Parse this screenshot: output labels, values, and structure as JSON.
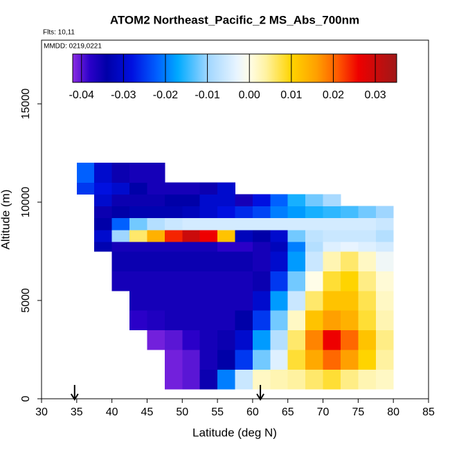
{
  "chart_data": {
    "type": "heatmap",
    "title": "ATOM2 Northeast_Pacific_2 MS_Abs_700nm",
    "subtitle": "Flts: 10,11",
    "annotation": "MMDD: 0219,0221",
    "x_label": "Latitude (deg N)",
    "y_label": "Altitude (m)",
    "xlim": [
      30,
      85
    ],
    "ylim": [
      0,
      18239
    ],
    "xticks": [
      30,
      35,
      40,
      45,
      50,
      55,
      60,
      65,
      70,
      75,
      80,
      85
    ],
    "yticks": [
      0,
      5000,
      10000,
      15000
    ],
    "clim": [
      -0.0421,
      0.0351
    ],
    "cticks": [
      -0.04,
      -0.03,
      -0.02,
      -0.01,
      {
        "value": 0,
        "label": "0.00"
      },
      0.01,
      0.02,
      0.03
    ],
    "colorscale": [
      [
        -0.042,
        "#8a2be2"
      ],
      [
        -0.038,
        "#2a00c8"
      ],
      [
        -0.034,
        "#0000a8"
      ],
      [
        -0.028,
        "#0010e0"
      ],
      [
        -0.022,
        "#0060ff"
      ],
      [
        -0.017,
        "#00aaff"
      ],
      [
        -0.01,
        "#9fd6ff"
      ],
      [
        -0.003,
        "#e8f4ff"
      ],
      [
        0,
        "#fffde8"
      ],
      [
        0.004,
        "#fff2a0"
      ],
      [
        0.01,
        "#ffd400"
      ],
      [
        0.016,
        "#ffa000"
      ],
      [
        0.021,
        "#ff5a00"
      ],
      [
        0.026,
        "#ee0000"
      ],
      [
        0.035,
        "#a01818"
      ]
    ],
    "arrows": [
      34.7,
      61.1
    ],
    "xbins": [
      35,
      37.5,
      40,
      42.5,
      45,
      47.5,
      50,
      52.5,
      55,
      57.5,
      60,
      62.5,
      65,
      67.5,
      70,
      72.5,
      75,
      77.5,
      80
    ],
    "ybins": [
      500,
      1500,
      2500,
      3500,
      4500,
      5500,
      6500,
      7500,
      8000,
      8600,
      9200,
      9800,
      10400,
      11000,
      12000
    ],
    "values": [
      [
        null,
        null,
        null,
        null,
        null,
        -0.041,
        -0.04,
        -0.035,
        -0.02,
        -0.006,
        0.002,
        0.003,
        0.004,
        0.006,
        0.008,
        0.005,
        0.003,
        0.002
      ],
      [
        null,
        null,
        null,
        null,
        null,
        -0.041,
        -0.04,
        -0.036,
        -0.034,
        -0.025,
        -0.012,
        -0.004,
        0.008,
        0.015,
        0.02,
        0.016,
        0.01,
        0.004
      ],
      [
        null,
        null,
        null,
        null,
        -0.041,
        -0.04,
        -0.038,
        -0.036,
        -0.035,
        -0.03,
        -0.018,
        -0.008,
        0.006,
        0.018,
        0.026,
        0.02,
        0.012,
        0.005
      ],
      [
        null,
        null,
        null,
        -0.038,
        -0.037,
        -0.036,
        -0.036,
        -0.036,
        -0.036,
        -0.034,
        -0.025,
        -0.012,
        0.002,
        0.012,
        0.016,
        0.014,
        0.008,
        0.003
      ],
      [
        null,
        null,
        null,
        -0.036,
        -0.036,
        -0.036,
        -0.036,
        -0.036,
        -0.036,
        -0.036,
        -0.03,
        -0.018,
        -0.006,
        0.006,
        0.012,
        0.012,
        0.007,
        0.002
      ],
      [
        null,
        null,
        -0.036,
        -0.036,
        -0.036,
        -0.036,
        -0.036,
        -0.036,
        -0.036,
        -0.036,
        -0.035,
        -0.025,
        -0.012,
        0,
        0.008,
        0.01,
        0.005,
        0.001
      ],
      [
        null,
        null,
        -0.035,
        -0.035,
        -0.035,
        -0.035,
        -0.035,
        -0.035,
        -0.035,
        -0.035,
        -0.036,
        -0.03,
        -0.018,
        -0.006,
        0.003,
        0.006,
        0.002,
        -0.002
      ],
      [
        null,
        -0.033,
        -0.036,
        -0.036,
        -0.036,
        -0.036,
        -0.036,
        -0.036,
        -0.038,
        -0.038,
        -0.036,
        -0.032,
        -0.02,
        -0.008,
        -0.004,
        -0.003,
        -0.004,
        -0.005
      ],
      [
        null,
        -0.03,
        -0.01,
        0.006,
        0.014,
        0.024,
        0.03,
        0.026,
        0.012,
        -0.032,
        -0.034,
        -0.03,
        -0.012,
        -0.007,
        -0.006,
        -0.006,
        -0.006,
        -0.008
      ],
      [
        null,
        -0.034,
        -0.022,
        -0.012,
        -0.008,
        -0.006,
        -0.005,
        -0.005,
        -0.005,
        -0.005,
        -0.005,
        -0.005,
        -0.005,
        -0.005,
        -0.005,
        -0.005,
        -0.005,
        -0.006
      ],
      [
        null,
        -0.035,
        -0.034,
        -0.033,
        -0.033,
        -0.033,
        -0.032,
        -0.03,
        -0.028,
        -0.026,
        -0.024,
        -0.02,
        -0.018,
        -0.016,
        -0.015,
        -0.014,
        -0.012,
        -0.01
      ],
      [
        null,
        -0.03,
        -0.035,
        -0.035,
        -0.035,
        -0.034,
        -0.034,
        -0.03,
        -0.03,
        -0.036,
        -0.028,
        -0.022,
        -0.016,
        -0.012,
        -0.009,
        null,
        null,
        null
      ],
      [
        -0.025,
        -0.028,
        -0.03,
        -0.034,
        -0.036,
        -0.036,
        -0.036,
        -0.035,
        -0.03,
        null,
        null,
        null,
        null,
        null,
        null,
        null,
        null,
        null
      ],
      [
        -0.022,
        -0.03,
        -0.035,
        -0.036,
        -0.036,
        null,
        null,
        null,
        null,
        null,
        null,
        null,
        null,
        null,
        null,
        null,
        null,
        null
      ]
    ]
  }
}
